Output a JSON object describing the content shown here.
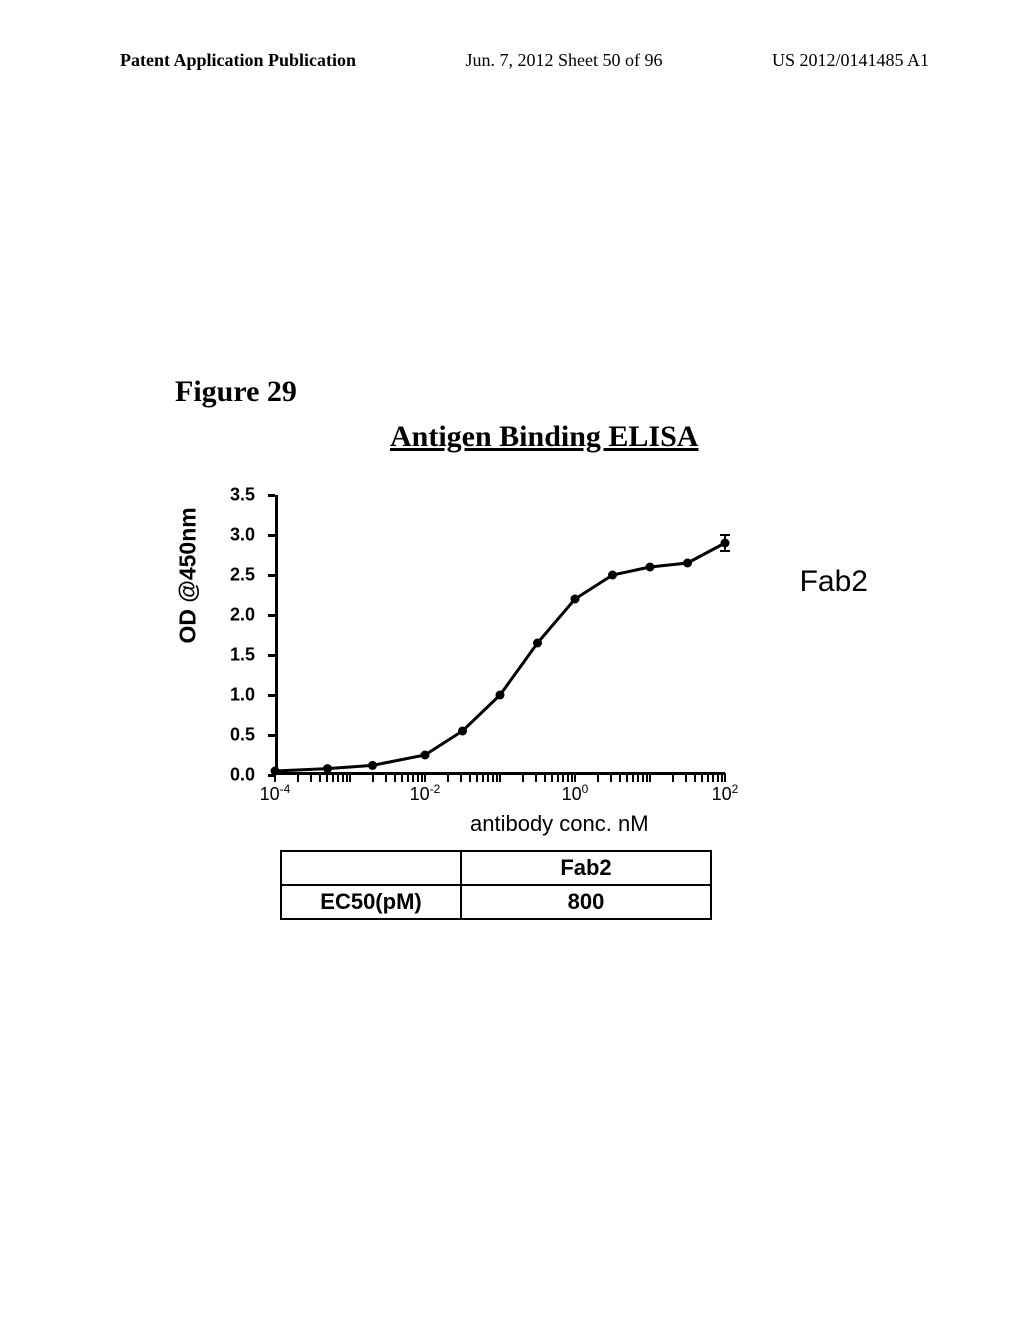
{
  "header": {
    "left": "Patent Application Publication",
    "center": "Jun. 7, 2012  Sheet 50 of 96",
    "right": "US 2012/0141485 A1"
  },
  "figure_label": "Figure 29",
  "chart": {
    "type": "line",
    "title": "Antigen Binding ELISA",
    "ylabel": "OD @450nm",
    "xlabel": "antibody conc. nM",
    "series_name": "Fab2",
    "ylim": [
      0.0,
      3.5
    ],
    "ytick_step": 0.5,
    "y_ticks": [
      "0.0",
      "0.5",
      "1.0",
      "1.5",
      "2.0",
      "2.5",
      "3.0",
      "3.5"
    ],
    "xlim_log": [
      -4,
      2
    ],
    "x_major_ticks": [
      -4,
      -2,
      0,
      2
    ],
    "x_tick_labels": [
      "10⁻⁴",
      "10⁻²",
      "10⁰",
      "10²"
    ],
    "data_points": [
      {
        "x_log": -4,
        "y": 0.05
      },
      {
        "x_log": -3.3,
        "y": 0.08
      },
      {
        "x_log": -2.7,
        "y": 0.12
      },
      {
        "x_log": -2,
        "y": 0.25
      },
      {
        "x_log": -1.5,
        "y": 0.55
      },
      {
        "x_log": -1,
        "y": 1.0
      },
      {
        "x_log": -0.5,
        "y": 1.65
      },
      {
        "x_log": 0,
        "y": 2.2
      },
      {
        "x_log": 0.5,
        "y": 2.5
      },
      {
        "x_log": 1,
        "y": 2.6
      },
      {
        "x_log": 1.5,
        "y": 2.65
      },
      {
        "x_log": 2,
        "y": 2.9
      }
    ],
    "line_color": "#000000",
    "marker_color": "#000000",
    "background_color": "#ffffff"
  },
  "table": {
    "header_label": "",
    "header_value": "Fab2",
    "row_label": "EC50(pM)",
    "row_value": "800"
  }
}
